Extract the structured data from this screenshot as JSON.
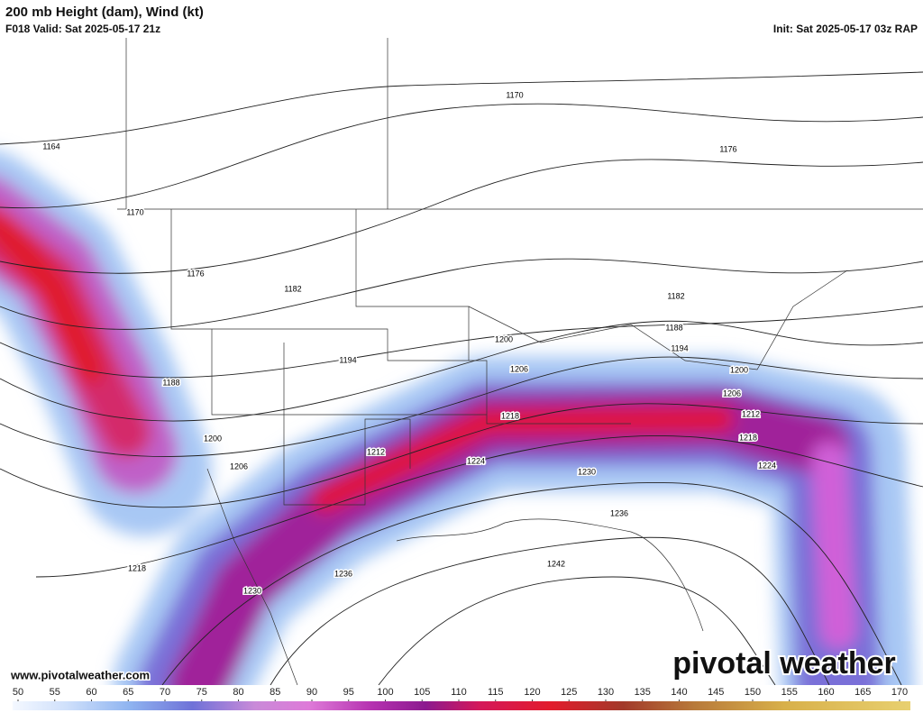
{
  "header": {
    "title": "200 mb Height (dam), Wind (kt)",
    "valid": "F018 Valid: Sat 2025-05-17 21z",
    "init": "Init: Sat 2025-05-17 03z RAP"
  },
  "contour_labels": [
    "1164",
    "1170",
    "1170",
    "1176",
    "1176",
    "1182",
    "1182",
    "1188",
    "1188",
    "1194",
    "1194",
    "1200",
    "1200",
    "1200",
    "1206",
    "1206",
    "1206",
    "1212",
    "1212",
    "1218",
    "1218",
    "1218",
    "1224",
    "1224",
    "1230",
    "1230",
    "1236",
    "1236",
    "1242"
  ],
  "website": "www.pivotalweather.com",
  "logo": "pivotal weather",
  "colorbar": {
    "ticks": [
      50,
      55,
      60,
      65,
      70,
      75,
      80,
      85,
      90,
      95,
      100,
      105,
      110,
      115,
      120,
      125,
      130,
      135,
      140,
      145,
      150,
      155,
      160,
      165,
      170
    ]
  }
}
